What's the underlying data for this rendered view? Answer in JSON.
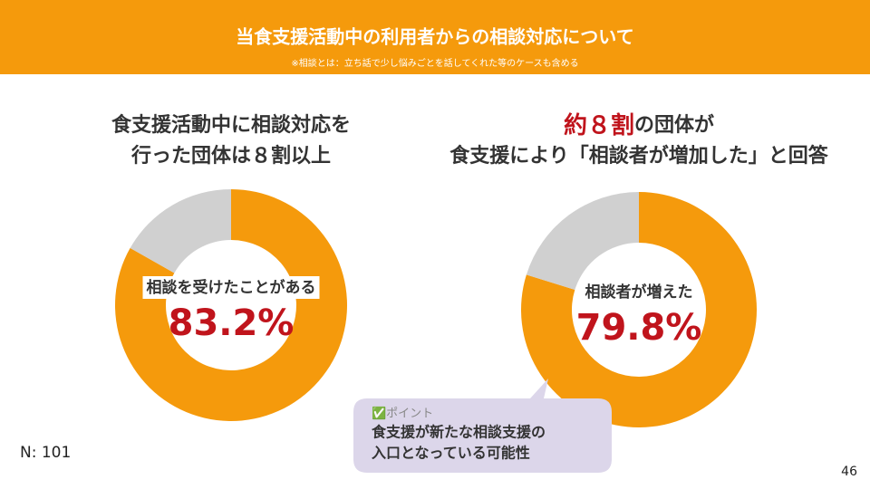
{
  "header": {
    "title": "当食支援活動中の利用者からの相談対応について",
    "note": "※相談とは：立ち話で少し悩みごとを話してくれた等のケースも含める"
  },
  "chart_data": [
    {
      "type": "pie",
      "title_lines": [
        "食支援活動中に相談対応を",
        "行った団体は８割以上"
      ],
      "categories": [
        "相談を受けたことがある",
        null
      ],
      "values": [
        83.2,
        16.8
      ],
      "value_labels": [
        "83.2%",
        null
      ],
      "colors": [
        "#f59a0c",
        "#d0d0d0"
      ]
    },
    {
      "type": "pie",
      "title_highlight": "約８割",
      "title_lines": [
        "の団体が",
        "食支援により「相談者が増加した」と回答"
      ],
      "categories": [
        "相談者が増えた",
        null
      ],
      "values": [
        79.8,
        20.2
      ],
      "value_labels": [
        "79.8%",
        null
      ],
      "colors": [
        "#f59a0c",
        "#d0d0d0"
      ]
    }
  ],
  "callout": {
    "heading": "✅ポイント",
    "lines": [
      "食支援が新たな相談支援の",
      "入口となっている可能性"
    ]
  },
  "sample_size": "N: 101",
  "page_number": "46"
}
